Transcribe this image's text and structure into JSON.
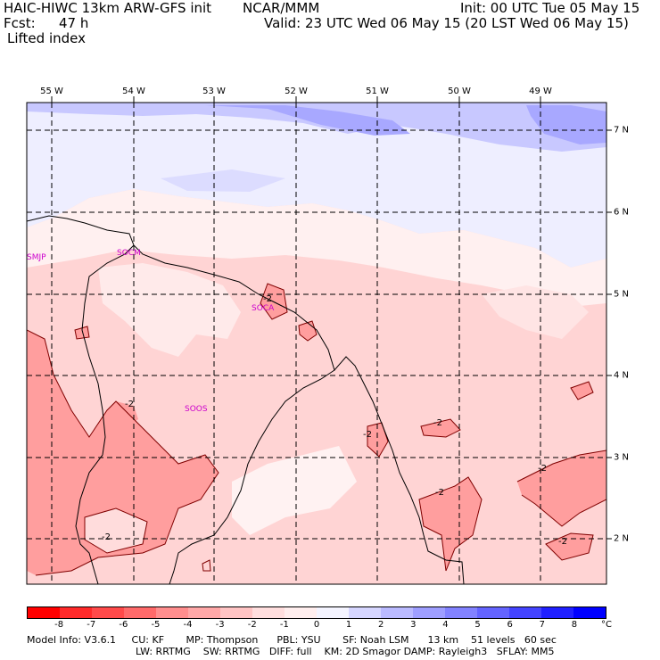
{
  "header": {
    "model": "HAIC-HIWC 13km ARW-GFS init",
    "org": "NCAR/MMM",
    "fcst_label": "Fcst:",
    "fcst_value": "47 h",
    "init": "Init: 00 UTC Tue 05 May 15",
    "valid": "Valid: 23 UTC Wed 06 May 15 (20 LST Wed 06 May 15)",
    "field": "Lifted index"
  },
  "map": {
    "lon_labels": [
      "55 W",
      "54 W",
      "53 W",
      "52 W",
      "51 W",
      "50 W",
      "49 W"
    ],
    "lat_labels": [
      "7 N",
      "6 N",
      "5 N",
      "4 N",
      "3 N",
      "2 N"
    ],
    "stations": [
      "SMJP",
      "SOCM",
      "SOCA",
      "SOOS"
    ],
    "contour_labels": [
      "-2",
      "-2",
      "-2",
      "-2",
      "-2",
      "-2",
      "-2",
      "-2"
    ]
  },
  "colorbar": {
    "colors": [
      "#ff0000",
      "#ff2a2a",
      "#ff4a4a",
      "#ff6a6a",
      "#ff8e8e",
      "#ffa8a8",
      "#ffc4c4",
      "#ffdede",
      "#ffeeee",
      "#f4f4ff",
      "#d6d6ff",
      "#babaff",
      "#9e9eff",
      "#8282ff",
      "#6464ff",
      "#4444ff",
      "#2020ff",
      "#0000ff"
    ],
    "ticks": [
      "-8",
      "-7",
      "-6",
      "-5",
      "-4",
      "-3",
      "-2",
      "-1",
      "0",
      "1",
      "2",
      "3",
      "4",
      "5",
      "6",
      "7",
      "8"
    ],
    "unit": "°C"
  },
  "footer": {
    "line1": "Model Info: V3.6.1     CU: KF       MP: Thompson      PBL: YSU       SF: Noah LSM      13 km    51 levels   60 sec",
    "line2": "LW: RRTMG    SW: RRTMG   DIFF: full    KM: 2D Smagor DAMP: Rayleigh3   SFLAY: MM5"
  }
}
